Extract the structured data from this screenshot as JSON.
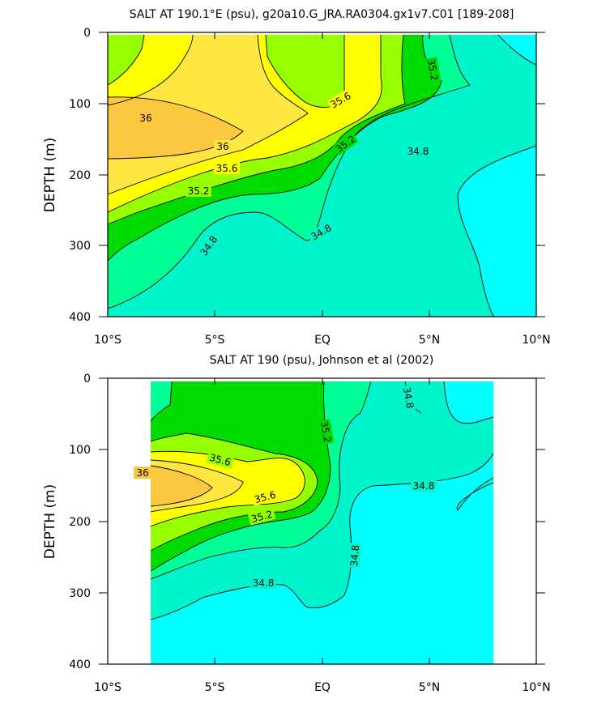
{
  "colors": {
    "lt_34_8": "#00ffff",
    "r34_8_35_0": "#00f5cc",
    "r35_0_35_2": "#00ff96",
    "r35_2_35_4": "#00dc00",
    "r35_4_35_6": "#96ff00",
    "r35_6_35_8": "#ffff00",
    "r35_8_36_0": "#ffe640",
    "gt_36_0": "#fbc840"
  },
  "chart_data": [
    {
      "type": "contour",
      "title": "SALT AT 190.1°E (psu), g20a10.G_JRA.RA0304.gx1v7.C01 [189-208]",
      "ylabel": "DEPTH (m)",
      "xlabel": "",
      "xlim": [
        -10,
        10
      ],
      "ylim": [
        400,
        0
      ],
      "xticks": [
        "10°S",
        "5°S",
        "EQ",
        "5°N",
        "10°N"
      ],
      "yticks": [
        "0",
        "100",
        "200",
        "300",
        "400"
      ],
      "contour_levels": [
        34.8,
        35.0,
        35.2,
        35.4,
        35.6,
        35.8,
        36.0
      ],
      "contour_labels": [
        "36",
        "36",
        "35.6",
        "35.6",
        "35.2",
        "35.2",
        "35.2",
        "34.8",
        "34.8",
        "34.8"
      ],
      "data_coverage": {
        "lon": [
          -10,
          10
        ],
        "depth": [
          5,
          400
        ]
      }
    },
    {
      "type": "contour",
      "title": "SALT AT 190 (psu), Johnson et al (2002)",
      "ylabel": "DEPTH (m)",
      "xlabel": "",
      "xlim": [
        -10,
        10
      ],
      "ylim": [
        400,
        0
      ],
      "xticks": [
        "10°S",
        "5°S",
        "EQ",
        "5°N",
        "10°N"
      ],
      "yticks": [
        "0",
        "100",
        "200",
        "300",
        "400"
      ],
      "contour_levels": [
        34.8,
        35.0,
        35.2,
        35.4,
        35.6,
        35.8,
        36.0
      ],
      "contour_labels": [
        "36",
        "35.6",
        "35.6",
        "35.2",
        "35.2",
        "34.8",
        "34.8",
        "34.8",
        "34.8"
      ],
      "data_coverage": {
        "lon": [
          -8,
          8
        ],
        "depth": [
          5,
          400
        ]
      }
    }
  ]
}
